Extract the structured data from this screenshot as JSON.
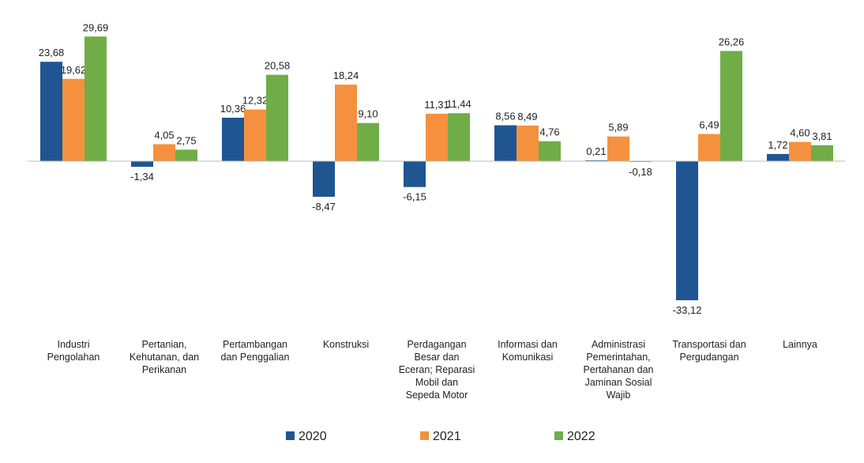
{
  "chart_data": {
    "type": "bar",
    "categories": [
      "Industri\nPengolahan",
      "Pertanian,\nKehutanan, dan\nPerikanan",
      "Pertambangan\ndan Penggalian",
      "Konstruksi",
      "Perdagangan\nBesar dan\nEceran; Reparasi\nMobil dan\nSepeda Motor",
      "Informasi dan\nKomunikasi",
      "Administrasi\nPemerintahan,\nPertahanan dan\nJaminan Sosial\nWajib",
      "Transportasi dan\nPergudangan",
      "Lainnya"
    ],
    "series": [
      {
        "name": "2020",
        "color": "#1f5591",
        "values": [
          23.68,
          -1.34,
          10.36,
          -8.47,
          -6.15,
          8.56,
          0.21,
          -33.12,
          1.72
        ],
        "value_labels": [
          "23,68",
          "-1,34",
          "10,36",
          "-8,47",
          "-6,15",
          "8,56",
          "0,21",
          "-33,12",
          "1,72"
        ]
      },
      {
        "name": "2021",
        "color": "#f5913e",
        "values": [
          19.62,
          4.05,
          12.32,
          18.24,
          11.31,
          8.49,
          5.89,
          6.49,
          4.6
        ],
        "value_labels": [
          "19,62",
          "4,05",
          "12,32",
          "18,24",
          "11,31",
          "8,49",
          "5,89",
          "6,49",
          "4,60"
        ]
      },
      {
        "name": "2022",
        "color": "#70ad47",
        "values": [
          29.69,
          2.75,
          20.58,
          9.1,
          11.44,
          4.76,
          -0.18,
          26.26,
          3.81
        ],
        "value_labels": [
          "29,69",
          "2,75",
          "20,58",
          "9,10",
          "11,44",
          "4,76",
          "-0,18",
          "26,26",
          "3,81"
        ]
      }
    ],
    "ylim": [
      -35,
      32
    ],
    "legend": "bottom"
  }
}
